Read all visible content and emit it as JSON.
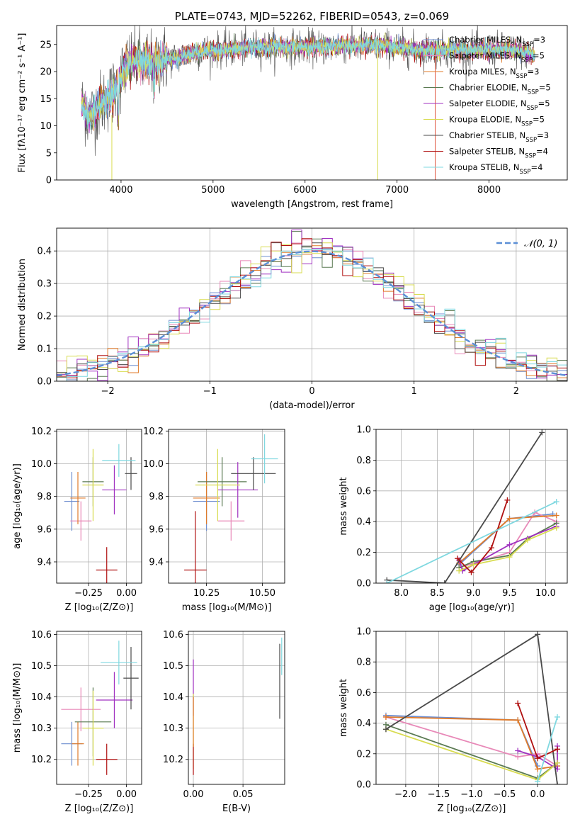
{
  "colors": {
    "chabrier_miles": "#6f8fd0",
    "salpeter_miles": "#e889b8",
    "kroupa_miles": "#e07b2a",
    "chabrier_elodie": "#5a7a52",
    "salpeter_elodie": "#a030c0",
    "kroupa_elodie": "#d8dc50",
    "chabrier_stelib": "#4a4a4a",
    "salpeter_stelib": "#b01010",
    "kroupa_stelib": "#7fd8e0",
    "normal": "#5b8fd6",
    "grid": "#b0b0b0"
  },
  "chart_data": [
    {
      "id": "spectrum",
      "type": "line",
      "title": "PLATE=0743, MJD=52262, FIBERID=0543, z=0.069",
      "xlabel": "wavelength [Angstrom, rest frame]",
      "ylabel": "Flux [fλ10⁻¹⁷ erg cm⁻² s⁻¹ A⁻¹]",
      "xlim": [
        3300,
        8850
      ],
      "ylim": [
        0,
        28.5
      ],
      "xticks": [
        "4000",
        "5000",
        "6000",
        "7000",
        "8000"
      ],
      "yticks": [
        "0",
        "5",
        "10",
        "15",
        "20",
        "25"
      ],
      "grid": false,
      "legend_position": "right",
      "legend": [
        {
          "label": "Chabrier MILES, N",
          "sub": "SSP",
          "eq": "=3",
          "color": "#6f8fd0"
        },
        {
          "label": "Salpeter MILES, N",
          "sub": "SSP",
          "eq": "=5",
          "color": "#e889b8"
        },
        {
          "label": "Kroupa MILES, N",
          "sub": "SSP",
          "eq": "=3",
          "color": "#e07b2a"
        },
        {
          "label": "Chabrier ELODIE, N",
          "sub": "SSP",
          "eq": "=5",
          "color": "#5a7a52"
        },
        {
          "label": "Salpeter ELODIE, N",
          "sub": "SSP",
          "eq": "=5",
          "color": "#a030c0"
        },
        {
          "label": "Kroupa ELODIE, N",
          "sub": "SSP",
          "eq": "=5",
          "color": "#d8dc50"
        },
        {
          "label": "Chabrier STELIB, N",
          "sub": "SSP",
          "eq": "=3",
          "color": "#4a4a4a"
        },
        {
          "label": "Salpeter STELIB, N",
          "sub": "SSP",
          "eq": "=4",
          "color": "#b01010"
        },
        {
          "label": "Kroupa STELIB, N",
          "sub": "SSP",
          "eq": "=4",
          "color": "#7fd8e0"
        }
      ],
      "continuum": [
        [
          3570,
          14
        ],
        [
          3650,
          11.5
        ],
        [
          3750,
          13.5
        ],
        [
          3850,
          15
        ],
        [
          3950,
          17
        ],
        [
          4050,
          21
        ],
        [
          4150,
          22
        ],
        [
          4250,
          21.5
        ],
        [
          4400,
          22
        ],
        [
          4600,
          22.5
        ],
        [
          4800,
          23.5
        ],
        [
          5000,
          24
        ],
        [
          5200,
          24
        ],
        [
          5400,
          24.5
        ],
        [
          5600,
          24.5
        ],
        [
          5800,
          24.5
        ],
        [
          6000,
          24.5
        ],
        [
          6200,
          24.5
        ],
        [
          6400,
          24.8
        ],
        [
          6600,
          24.8
        ],
        [
          6800,
          24.8
        ],
        [
          7000,
          24.5
        ],
        [
          7200,
          24
        ],
        [
          7400,
          24
        ],
        [
          7600,
          24
        ],
        [
          7800,
          24
        ],
        [
          8000,
          24
        ],
        [
          8200,
          24
        ],
        [
          8400,
          23.5
        ],
        [
          8500,
          23
        ]
      ],
      "glitches": [
        {
          "x": 3900,
          "ymin": 0,
          "ymax": 12,
          "color": "#d8dc50"
        },
        {
          "x": 6790,
          "ymin": 0,
          "ymax": 26,
          "color": "#d8dc50"
        },
        {
          "x": 7415,
          "ymin": 0,
          "ymax": 25,
          "color": "#e0503a"
        }
      ]
    },
    {
      "id": "residuals",
      "type": "histogram",
      "xlabel": "(data-model)/error",
      "ylabel": "Normed distribution",
      "xlim": [
        -2.5,
        2.5
      ],
      "ylim": [
        0,
        0.47
      ],
      "xticks": [
        "−2",
        "−1",
        "0",
        "1",
        "2"
      ],
      "yticks": [
        "0.0",
        "0.1",
        "0.2",
        "0.3",
        "0.4"
      ],
      "grid": true,
      "bin_width": 0.1,
      "legend": [
        {
          "label": "𝒩(0, 1)",
          "color": "#5b8fd6",
          "style": "dashed"
        }
      ],
      "legend_position": "top-right"
    },
    {
      "id": "age_vs_Z",
      "type": "scatter",
      "xlabel": "Z [log₁₀(Z/Z⊙)]",
      "ylabel": "age  [log₁₀(age/yr)]",
      "xlim": [
        -0.46,
        0.1
      ],
      "ylim": [
        9.27,
        10.21
      ],
      "xticks": [
        "−0.25",
        "0.00"
      ],
      "yticks": [
        "9.4",
        "9.6",
        "9.8",
        "10.0",
        "10.2"
      ],
      "grid": true,
      "points": [
        {
          "x": -0.36,
          "y": 9.77,
          "xerr": [
            0.05,
            0.05
          ],
          "yerr": [
            0.18,
            0.18
          ],
          "color": "#6f8fd0"
        },
        {
          "x": -0.3,
          "y": 9.65,
          "xerr": [
            0.07,
            0.07
          ],
          "yerr": [
            0.12,
            0.12
          ],
          "color": "#e889b8"
        },
        {
          "x": -0.32,
          "y": 9.79,
          "xerr": [
            0.05,
            0.05
          ],
          "yerr": [
            0.16,
            0.16
          ],
          "color": "#e07b2a"
        },
        {
          "x": -0.22,
          "y": 9.89,
          "xerr": [
            0.07,
            0.07
          ],
          "yerr": [
            0.15,
            0.15
          ],
          "color": "#5a7a52"
        },
        {
          "x": -0.08,
          "y": 9.84,
          "xerr": [
            0.08,
            0.08
          ],
          "yerr": [
            0.15,
            0.15
          ],
          "color": "#a030c0"
        },
        {
          "x": -0.22,
          "y": 9.87,
          "xerr": [
            0.07,
            0.07
          ],
          "yerr": [
            0.22,
            0.22
          ],
          "color": "#d8dc50"
        },
        {
          "x": 0.03,
          "y": 9.94,
          "xerr": [
            0.04,
            0.04
          ],
          "yerr": [
            0.1,
            0.1
          ],
          "color": "#4a4a4a"
        },
        {
          "x": -0.13,
          "y": 9.35,
          "xerr": [
            0.07,
            0.07
          ],
          "yerr": [
            0.14,
            0.14
          ],
          "color": "#b01010"
        },
        {
          "x": -0.05,
          "y": 10.02,
          "xerr": [
            0.11,
            0.11
          ],
          "yerr": [
            0.1,
            0.1
          ],
          "color": "#7fd8e0"
        }
      ]
    },
    {
      "id": "age_vs_mass",
      "type": "scatter",
      "xlabel": "mass [log₁₀(M/M⊙)]",
      "ylabel": "",
      "xlim": [
        10.08,
        10.6
      ],
      "ylim": [
        9.27,
        10.21
      ],
      "xticks": [
        "10.25",
        "10.50"
      ],
      "yticks": [
        "9.4",
        "9.6",
        "9.8",
        "10.0",
        "10.2"
      ],
      "grid": true,
      "points": [
        {
          "x": 10.25,
          "y": 9.77,
          "xerr": [
            0.06,
            0.06
          ],
          "yerr": [
            0.18,
            0.18
          ],
          "color": "#6f8fd0"
        },
        {
          "x": 10.36,
          "y": 9.65,
          "xerr": [
            0.06,
            0.06
          ],
          "yerr": [
            0.12,
            0.12
          ],
          "color": "#e889b8"
        },
        {
          "x": 10.25,
          "y": 9.79,
          "xerr": [
            0.06,
            0.06
          ],
          "yerr": [
            0.16,
            0.16
          ],
          "color": "#e07b2a"
        },
        {
          "x": 10.32,
          "y": 9.89,
          "xerr": [
            0.11,
            0.11
          ],
          "yerr": [
            0.15,
            0.15
          ],
          "color": "#5a7a52"
        },
        {
          "x": 10.39,
          "y": 9.84,
          "xerr": [
            0.09,
            0.09
          ],
          "yerr": [
            0.17,
            0.17
          ],
          "color": "#a030c0"
        },
        {
          "x": 10.3,
          "y": 9.87,
          "xerr": [
            0.1,
            0.1
          ],
          "yerr": [
            0.22,
            0.22
          ],
          "color": "#d8dc50"
        },
        {
          "x": 10.46,
          "y": 9.94,
          "xerr": [
            0.1,
            0.1
          ],
          "yerr": [
            0.1,
            0.1
          ],
          "color": "#4a4a4a"
        },
        {
          "x": 10.2,
          "y": 9.35,
          "xerr": [
            0.05,
            0.05
          ],
          "yerr": [
            0.36,
            0.36
          ],
          "color": "#b01010"
        },
        {
          "x": 10.51,
          "y": 10.03,
          "xerr": [
            0.06,
            0.06
          ],
          "yerr": [
            0.15,
            0.15
          ],
          "color": "#7fd8e0"
        }
      ]
    },
    {
      "id": "weight_vs_age",
      "type": "line",
      "xlabel": "age  [log₁₀(age/yr)]",
      "ylabel": "mass weight",
      "xlim": [
        7.65,
        10.3
      ],
      "ylim": [
        0,
        1
      ],
      "xticks": [
        "8.0",
        "8.5",
        "9.0",
        "9.5",
        "10.0"
      ],
      "yticks": [
        "0.0",
        "0.2",
        "0.4",
        "0.6",
        "0.8",
        "1.0"
      ],
      "grid": true,
      "series": [
        {
          "color": "#6f8fd0",
          "x": [
            8.8,
            9.5,
            10.1
          ],
          "y": [
            0.12,
            0.42,
            0.45
          ]
        },
        {
          "color": "#e889b8",
          "x": [
            8.8,
            9.5,
            9.85,
            10.15
          ],
          "y": [
            0.1,
            0.2,
            0.46,
            0.4
          ]
        },
        {
          "color": "#e07b2a",
          "x": [
            8.8,
            9.5,
            10.15
          ],
          "y": [
            0.13,
            0.42,
            0.44
          ]
        },
        {
          "color": "#5a7a52",
          "x": [
            8.8,
            9.0,
            9.5,
            9.75,
            10.15
          ],
          "y": [
            0.1,
            0.14,
            0.18,
            0.29,
            0.39
          ]
        },
        {
          "color": "#a030c0",
          "x": [
            8.8,
            8.85,
            9.0,
            9.5,
            10.15
          ],
          "y": [
            0.15,
            0.08,
            0.12,
            0.25,
            0.37
          ]
        },
        {
          "color": "#d8dc50",
          "x": [
            8.8,
            9.0,
            9.5,
            9.75,
            10.15
          ],
          "y": [
            0.08,
            0.12,
            0.17,
            0.28,
            0.36
          ]
        },
        {
          "color": "#4a4a4a",
          "x": [
            7.8,
            8.6,
            9.95
          ],
          "y": [
            0.02,
            0.0,
            0.98
          ]
        },
        {
          "color": "#b01010",
          "x": [
            8.78,
            8.97,
            9.25,
            9.47
          ],
          "y": [
            0.16,
            0.07,
            0.23,
            0.54
          ]
        },
        {
          "color": "#7fd8e0",
          "x": [
            7.8,
            10.15
          ],
          "y": [
            0.0,
            0.53
          ]
        }
      ]
    },
    {
      "id": "mass_vs_Z",
      "type": "scatter",
      "xlabel": "Z [log₁₀(Z/Z⊙)]",
      "ylabel": "mass [log₁₀(M/M⊙)]",
      "xlim": [
        -0.46,
        0.1
      ],
      "ylim": [
        10.12,
        10.61
      ],
      "xticks": [
        "−0.25",
        "0.00"
      ],
      "yticks": [
        "10.2",
        "10.3",
        "10.4",
        "10.5",
        "10.6"
      ],
      "grid": true,
      "points": [
        {
          "x": -0.36,
          "y": 10.25,
          "xerr": [
            0.07,
            0.07
          ],
          "yerr": [
            0.07,
            0.07
          ],
          "color": "#6f8fd0"
        },
        {
          "x": -0.3,
          "y": 10.36,
          "xerr": [
            0.13,
            0.13
          ],
          "yerr": [
            0.07,
            0.07
          ],
          "color": "#e889b8"
        },
        {
          "x": -0.32,
          "y": 10.25,
          "xerr": [
            0.04,
            0.04
          ],
          "yerr": [
            0.07,
            0.07
          ],
          "color": "#e07b2a"
        },
        {
          "x": -0.22,
          "y": 10.32,
          "xerr": [
            0.12,
            0.12
          ],
          "yerr": [
            0.11,
            0.11
          ],
          "color": "#5a7a52"
        },
        {
          "x": -0.08,
          "y": 10.39,
          "xerr": [
            0.12,
            0.12
          ],
          "yerr": [
            0.09,
            0.09
          ],
          "color": "#a030c0"
        },
        {
          "x": -0.22,
          "y": 10.3,
          "xerr": [
            0.07,
            0.07
          ],
          "yerr": [
            0.12,
            0.12
          ],
          "color": "#d8dc50"
        },
        {
          "x": 0.03,
          "y": 10.46,
          "xerr": [
            0.05,
            0.05
          ],
          "yerr": [
            0.1,
            0.1
          ],
          "color": "#4a4a4a"
        },
        {
          "x": -0.13,
          "y": 10.2,
          "xerr": [
            0.07,
            0.07
          ],
          "yerr": [
            0.05,
            0.05
          ],
          "color": "#b01010"
        },
        {
          "x": -0.05,
          "y": 10.51,
          "xerr": [
            0.12,
            0.12
          ],
          "yerr": [
            0.07,
            0.07
          ],
          "color": "#7fd8e0"
        }
      ]
    },
    {
      "id": "mass_vs_ebv",
      "type": "scatter",
      "xlabel": "E(B-V)",
      "ylabel": "",
      "xlim": [
        -0.005,
        0.092
      ],
      "ylim": [
        10.12,
        10.61
      ],
      "xticks": [
        "0.00",
        "0.05"
      ],
      "yticks": [
        "10.2",
        "10.3",
        "10.4",
        "10.5",
        "10.6"
      ],
      "grid": true,
      "points": [
        {
          "x": 0.0,
          "y": 10.43,
          "xerr": [
            0,
            0
          ],
          "yerr": [
            0.09,
            0.09
          ],
          "color": "#a030c0"
        },
        {
          "x": 0.0,
          "y": 10.29,
          "xerr": [
            0,
            0
          ],
          "yerr": [
            0.12,
            0.12
          ],
          "color": "#d8dc50"
        },
        {
          "x": 0.0,
          "y": 10.2,
          "xerr": [
            0,
            0
          ],
          "yerr": [
            0.05,
            0.05
          ],
          "color": "#b01010"
        },
        {
          "x": 0.0,
          "y": 10.32,
          "xerr": [
            0,
            0
          ],
          "yerr": [
            0.08,
            0.08
          ],
          "color": "#e07b2a"
        },
        {
          "x": 0.087,
          "y": 10.45,
          "xerr": [
            0,
            0
          ],
          "yerr": [
            0.12,
            0.12
          ],
          "color": "#4a4a4a"
        },
        {
          "x": 0.089,
          "y": 10.53,
          "xerr": [
            0,
            0
          ],
          "yerr": [
            0.06,
            0.06
          ],
          "color": "#7fd8e0"
        }
      ]
    },
    {
      "id": "weight_vs_Z",
      "type": "line",
      "xlabel": "Z [log₁₀(Z/Z⊙)]",
      "ylabel": "mass weight",
      "xlim": [
        -2.45,
        0.45
      ],
      "ylim": [
        0,
        1
      ],
      "xticks": [
        "−2.0",
        "−1.5",
        "−1.0",
        "−0.5",
        "0.0"
      ],
      "yticks": [
        "0.0",
        "0.2",
        "0.4",
        "0.6",
        "0.8",
        "1.0"
      ],
      "grid": true,
      "series": [
        {
          "color": "#6f8fd0",
          "x": [
            -2.3,
            -0.3,
            0.0
          ],
          "y": [
            0.45,
            0.42,
            0.12
          ]
        },
        {
          "color": "#e889b8",
          "x": [
            -2.3,
            -0.3,
            0.0,
            0.3
          ],
          "y": [
            0.44,
            0.18,
            0.2,
            0.12
          ]
        },
        {
          "color": "#e07b2a",
          "x": [
            -2.3,
            -0.3,
            0.0,
            0.3
          ],
          "y": [
            0.44,
            0.42,
            0.1,
            0.12
          ]
        },
        {
          "color": "#5a7a52",
          "x": [
            -2.3,
            0.0,
            0.3
          ],
          "y": [
            0.39,
            0.04,
            0.14
          ]
        },
        {
          "color": "#a030c0",
          "x": [
            -0.3,
            0.0,
            0.3,
            0.3
          ],
          "y": [
            0.22,
            0.18,
            0.1,
            0.25
          ]
        },
        {
          "color": "#d8dc50",
          "x": [
            -2.3,
            0.0,
            0.3
          ],
          "y": [
            0.36,
            0.03,
            0.14
          ]
        },
        {
          "color": "#4a4a4a",
          "x": [
            -2.3,
            0.0,
            0.3
          ],
          "y": [
            0.36,
            0.98,
            0.0
          ]
        },
        {
          "color": "#b01010",
          "x": [
            -0.3,
            0.0,
            0.3
          ],
          "y": [
            0.53,
            0.17,
            0.23
          ]
        },
        {
          "color": "#7fd8e0",
          "x": [
            0.0,
            0.3
          ],
          "y": [
            0.02,
            0.44
          ]
        }
      ]
    }
  ]
}
